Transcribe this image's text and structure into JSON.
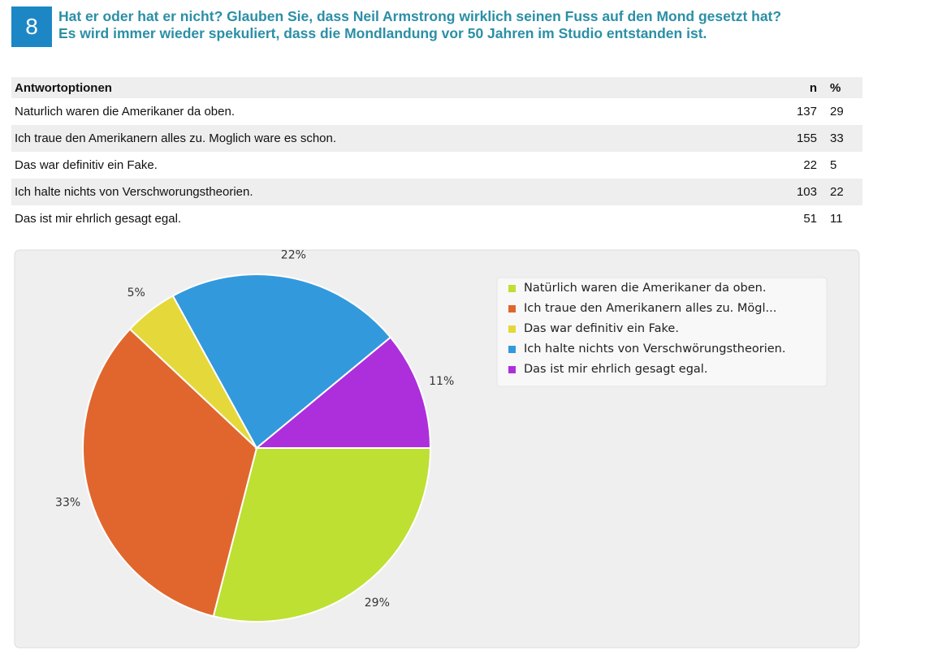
{
  "question": {
    "number": "8",
    "lines": [
      "Hat er oder hat er nicht? Glauben Sie, dass Neil Armstrong wirklich seinen Fuss auf den Mond gesetzt hat?",
      "Es wird immer wieder spekuliert, dass die Mondlandung vor 50 Jahren im Studio entstanden ist."
    ]
  },
  "table": {
    "header": [
      "Antwortoptionen",
      "n",
      "%"
    ],
    "rows": [
      [
        "Naturlich waren die Amerikaner da oben.",
        137,
        29
      ],
      [
        "Ich traue den Amerikanern alles zu. Moglich ware es schon.",
        155,
        33
      ],
      [
        "Das war definitiv ein Fake.",
        22,
        5
      ],
      [
        "Ich halte nichts von Verschworungstheorien.",
        103,
        22
      ],
      [
        "Das ist mir ehrlich gesagt egal.",
        51,
        11
      ]
    ]
  },
  "chart_data": {
    "type": "pie",
    "categories": [
      "Natürlich waren die Amerikaner da oben.",
      "Ich traue den Amerikanern alles zu. Mögl...",
      "Das war definitiv ein Fake.",
      "Ich halte nichts von Verschwörungstheorien.",
      "Das ist mir ehrlich gesagt egal."
    ],
    "values": [
      29,
      33,
      5,
      22,
      11
    ],
    "value_labels": [
      "29%",
      "33%",
      "5%",
      "22%",
      "11%"
    ],
    "colors": [
      "#bde032",
      "#e0662e",
      "#e5d83a",
      "#3399dd",
      "#ad2fdc"
    ],
    "legend": "right"
  }
}
